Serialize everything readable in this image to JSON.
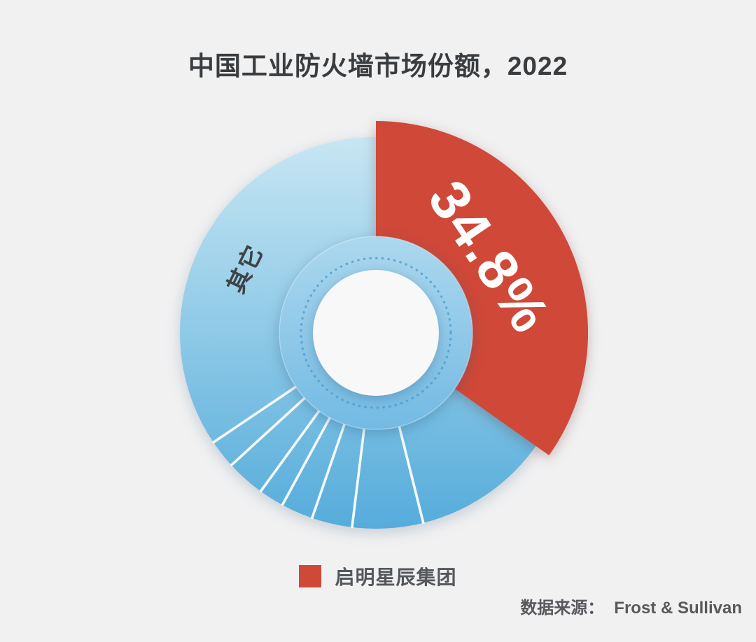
{
  "title": "中国工业防火墙市场份额，2022",
  "chart_data": {
    "type": "pie",
    "subtype": "donut",
    "title": "中国工业防火墙市场份额，2022",
    "unit": "%",
    "start_angle_deg": 0,
    "slices": [
      {
        "name": "启明星辰集团",
        "value": 34.8,
        "label": "34.8%",
        "color": "#D04838"
      },
      {
        "name": "其它",
        "value": 65.2,
        "label": "其它",
        "color": "blue gradient"
      }
    ],
    "others_divider_angles_deg": [
      166,
      187,
      199,
      208.5,
      216,
      227.5,
      236
    ],
    "legend_position": "bottom",
    "colors": {
      "red": "#D04838",
      "blue_top": "#C7E6F3",
      "blue_bottom": "#55ACDB",
      "inner_top": "#ACD8EE",
      "inner_bottom": "#73BAE3",
      "dot_ring": "#4C9DCE",
      "divider": "#FFFFFF",
      "hole": "#F8F8F9",
      "background": "#F1F1F2"
    }
  },
  "legend": {
    "items": [
      {
        "label": "启明星辰集团",
        "color": "#D04838"
      }
    ]
  },
  "source": {
    "prefix": "数据来源：",
    "text": "Frost & Sullivan"
  }
}
